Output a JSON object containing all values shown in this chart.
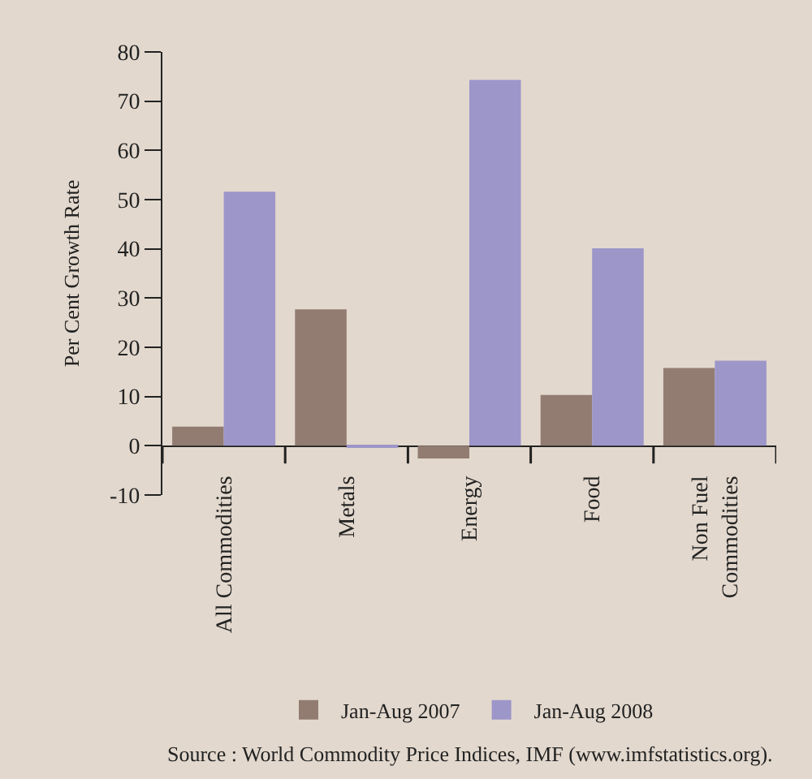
{
  "chart_data": {
    "type": "bar",
    "ylabel": "Per Cent Growth Rate",
    "categories": [
      "All Commodities",
      "Metals",
      "Energy",
      "Food",
      "Non Fuel\nCommodities"
    ],
    "series": [
      {
        "name": "Jan-Aug 2007",
        "color": "#927c72",
        "values": [
          3.9,
          27.7,
          -2.6,
          10.3,
          15.8
        ]
      },
      {
        "name": "Jan-Aug 2008",
        "color": "#9d96c9",
        "values": [
          51.6,
          -0.3,
          74.3,
          40.1,
          17.3
        ]
      }
    ],
    "ylim": [
      -10,
      80
    ],
    "yticks": [
      -10,
      0,
      10,
      20,
      30,
      40,
      50,
      60,
      70,
      80
    ],
    "grid": false,
    "legend": "bottom",
    "annotations": [
      "Source : World Commodity Price Indices, IMF (www.imfstatistics.org)."
    ]
  }
}
